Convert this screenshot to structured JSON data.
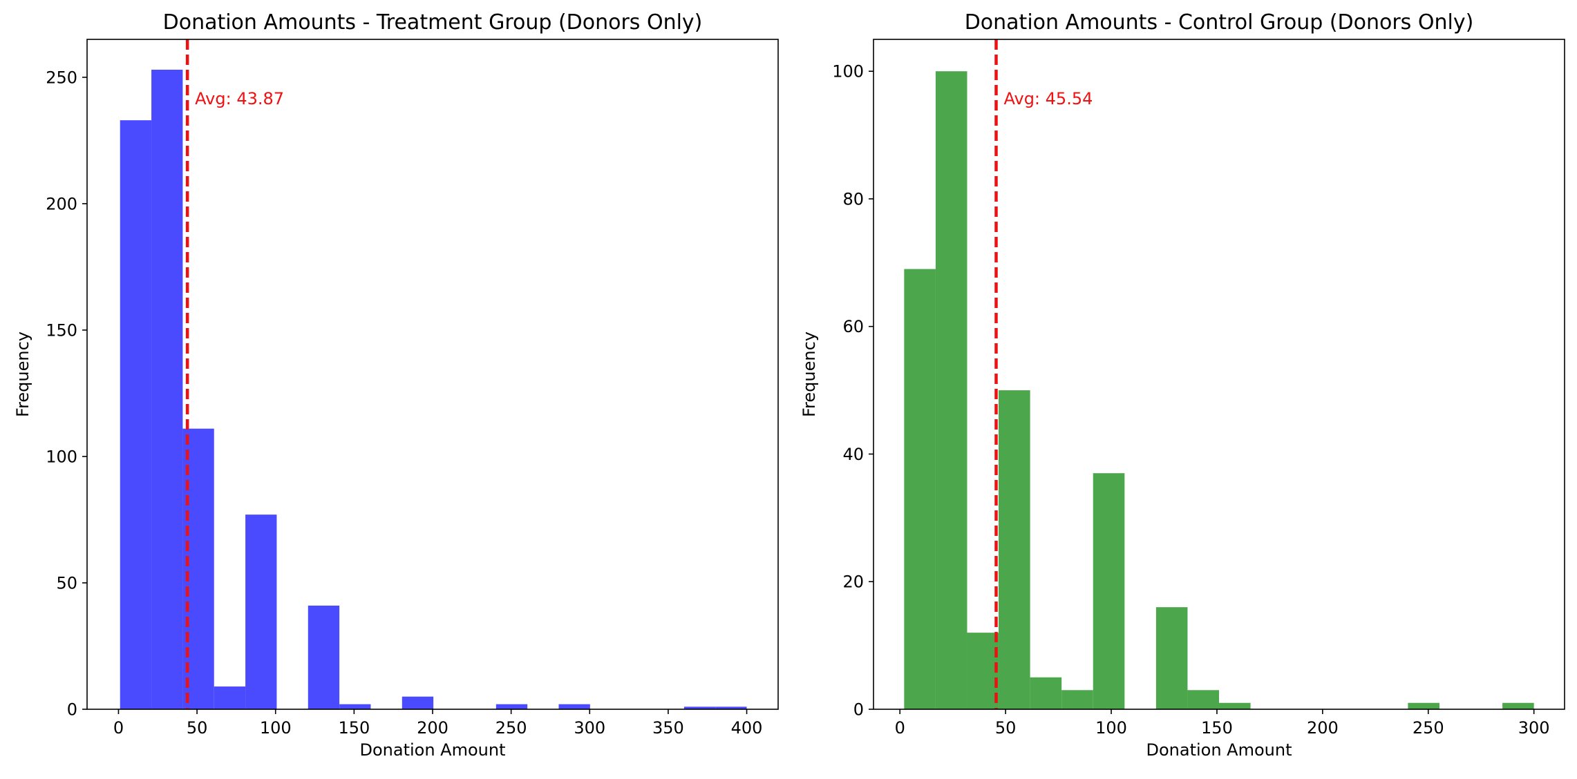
{
  "chart_data": [
    {
      "type": "bar",
      "title": "Donation Amounts - Treatment Group (Donors Only)",
      "xlabel": "Donation Amount",
      "ylabel": "Frequency",
      "xlim": [
        -20,
        420
      ],
      "ylim": [
        0,
        265
      ],
      "xticks": [
        0,
        50,
        100,
        150,
        200,
        250,
        300,
        350,
        400
      ],
      "yticks": [
        0,
        50,
        100,
        150,
        200,
        250
      ],
      "bar_color": "#4a4aff",
      "bins": [
        {
          "x0": 1,
          "x1": 20.95,
          "count": 233
        },
        {
          "x0": 20.95,
          "x1": 40.9,
          "count": 253
        },
        {
          "x0": 40.9,
          "x1": 60.85,
          "count": 111
        },
        {
          "x0": 60.85,
          "x1": 80.8,
          "count": 9
        },
        {
          "x0": 80.8,
          "x1": 100.75,
          "count": 77
        },
        {
          "x0": 100.75,
          "x1": 120.7,
          "count": 0
        },
        {
          "x0": 120.7,
          "x1": 140.65,
          "count": 41
        },
        {
          "x0": 140.65,
          "x1": 160.6,
          "count": 2
        },
        {
          "x0": 160.6,
          "x1": 180.55,
          "count": 0
        },
        {
          "x0": 180.55,
          "x1": 200.5,
          "count": 5
        },
        {
          "x0": 200.5,
          "x1": 220.45,
          "count": 0
        },
        {
          "x0": 220.45,
          "x1": 240.4,
          "count": 0
        },
        {
          "x0": 240.4,
          "x1": 260.35,
          "count": 2
        },
        {
          "x0": 260.35,
          "x1": 280.3,
          "count": 0
        },
        {
          "x0": 280.3,
          "x1": 300.25,
          "count": 2
        },
        {
          "x0": 300.25,
          "x1": 320.2,
          "count": 0
        },
        {
          "x0": 320.2,
          "x1": 340.15,
          "count": 0
        },
        {
          "x0": 340.15,
          "x1": 360.1,
          "count": 0
        },
        {
          "x0": 360.1,
          "x1": 380.05,
          "count": 1
        },
        {
          "x0": 380.05,
          "x1": 400,
          "count": 1
        }
      ],
      "mean_line": {
        "value": 43.87,
        "color": "#ee1111",
        "label": "Avg: 43.87"
      }
    },
    {
      "type": "bar",
      "title": "Donation Amounts - Control Group (Donors Only)",
      "xlabel": "Donation Amount",
      "ylabel": "Frequency",
      "xlim": [
        -12.5,
        314.5
      ],
      "ylim": [
        0,
        105
      ],
      "xticks": [
        0,
        50,
        100,
        150,
        200,
        250,
        300
      ],
      "yticks": [
        0,
        20,
        40,
        60,
        80,
        100
      ],
      "bar_color": "#4ca64c",
      "bins": [
        {
          "x0": 2,
          "x1": 16.9,
          "count": 69
        },
        {
          "x0": 16.9,
          "x1": 31.8,
          "count": 100
        },
        {
          "x0": 31.8,
          "x1": 46.7,
          "count": 12
        },
        {
          "x0": 46.7,
          "x1": 61.6,
          "count": 50
        },
        {
          "x0": 61.6,
          "x1": 76.5,
          "count": 5
        },
        {
          "x0": 76.5,
          "x1": 91.4,
          "count": 3
        },
        {
          "x0": 91.4,
          "x1": 106.3,
          "count": 37
        },
        {
          "x0": 106.3,
          "x1": 121.2,
          "count": 0
        },
        {
          "x0": 121.2,
          "x1": 136.1,
          "count": 16
        },
        {
          "x0": 136.1,
          "x1": 151,
          "count": 3
        },
        {
          "x0": 151,
          "x1": 165.9,
          "count": 1
        },
        {
          "x0": 165.9,
          "x1": 180.8,
          "count": 0
        },
        {
          "x0": 180.8,
          "x1": 195.7,
          "count": 0
        },
        {
          "x0": 195.7,
          "x1": 210.6,
          "count": 0
        },
        {
          "x0": 210.6,
          "x1": 225.5,
          "count": 0
        },
        {
          "x0": 225.5,
          "x1": 240.4,
          "count": 0
        },
        {
          "x0": 240.4,
          "x1": 255.3,
          "count": 1
        },
        {
          "x0": 255.3,
          "x1": 270.2,
          "count": 0
        },
        {
          "x0": 270.2,
          "x1": 285.1,
          "count": 0
        },
        {
          "x0": 285.1,
          "x1": 300,
          "count": 1
        }
      ],
      "mean_line": {
        "value": 45.54,
        "color": "#ee1111",
        "label": "Avg: 45.54"
      }
    }
  ]
}
